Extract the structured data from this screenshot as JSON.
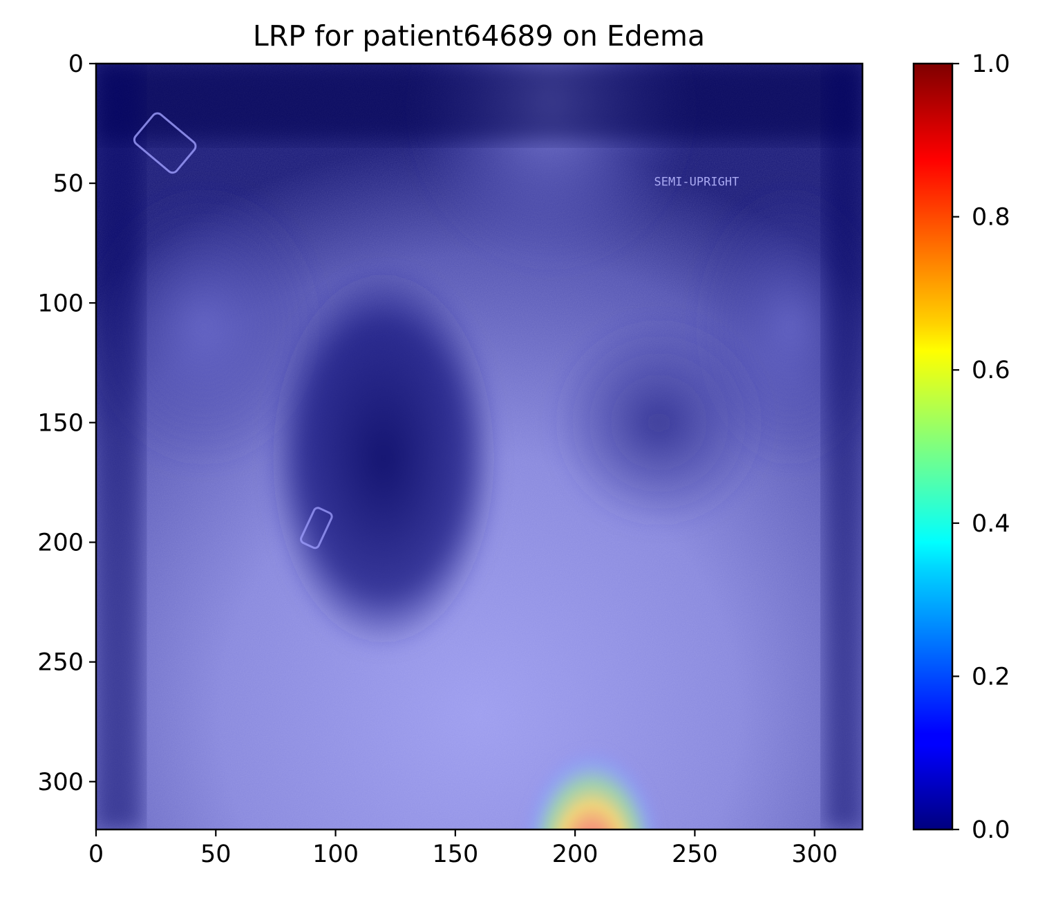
{
  "chart_data": {
    "type": "heatmap",
    "title": "LRP for patient64689 on Edema",
    "xlabel": "",
    "ylabel": "",
    "xlim": [
      0,
      320
    ],
    "ylim": [
      320,
      0
    ],
    "x_ticks": [
      0,
      50,
      100,
      150,
      200,
      250,
      300
    ],
    "y_ticks": [
      0,
      50,
      100,
      150,
      200,
      250,
      300
    ],
    "colorbar": {
      "colormap": "jet",
      "range": [
        0.0,
        1.0
      ],
      "ticks": [
        "0.0",
        "0.2",
        "0.4",
        "0.6",
        "0.8",
        "1.0"
      ]
    },
    "background_image": "chest x-ray (frontal view) with blue overlay",
    "image_annotation_text": "SEMI-UPRIGHT",
    "hotspots": [
      {
        "x": 207,
        "y": 310,
        "value": 0.95
      }
    ],
    "grid": false
  },
  "colors": {
    "overlay_base": "#00007f",
    "jet_low": "#00007f",
    "jet_high": "#7f0000"
  },
  "icons": [
    "chest-xray-image",
    "colorbar"
  ]
}
